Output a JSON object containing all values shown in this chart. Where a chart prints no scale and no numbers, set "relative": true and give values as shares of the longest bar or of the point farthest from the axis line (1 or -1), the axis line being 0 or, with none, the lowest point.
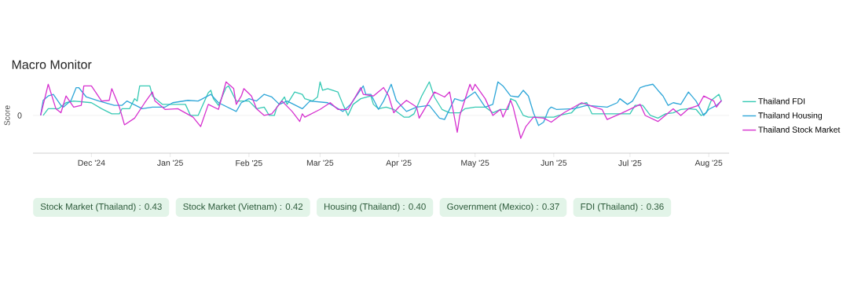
{
  "chart_data": {
    "type": "line",
    "title": "Macro Monitor",
    "ylabel": "Score",
    "relative": true,
    "legend": "right",
    "line_style": "solid",
    "xlim": [
      "2024-11-08",
      "2025-08-09"
    ],
    "xticks": [
      {
        "value": "2024-12-01",
        "label": "Dec '24"
      },
      {
        "value": "2025-01-01",
        "label": "Jan '25"
      },
      {
        "value": "2025-02-01",
        "label": "Feb '25"
      },
      {
        "value": "2025-03-01",
        "label": "Mar '25"
      },
      {
        "value": "2025-04-01",
        "label": "Apr '25"
      },
      {
        "value": "2025-05-01",
        "label": "May '25"
      },
      {
        "value": "2025-06-01",
        "label": "Jun '25"
      },
      {
        "value": "2025-07-01",
        "label": "Jul '25"
      },
      {
        "value": "2025-08-01",
        "label": "Aug '25"
      }
    ],
    "ref_lines": [
      {
        "axis": "y",
        "value": 0,
        "label": "0",
        "color": "#eeeeee"
      }
    ],
    "series": [
      {
        "name": "Thailand FDI",
        "color": "#36c9b4",
        "x": [
          "2024-11-12",
          "2024-11-14",
          "2024-11-18",
          "2024-11-21",
          "2024-11-24",
          "2024-12-01",
          "2024-12-05",
          "2024-12-09",
          "2024-12-12",
          "2024-12-13",
          "2024-12-16",
          "2024-12-18",
          "2024-12-19",
          "2024-12-20",
          "2024-12-24",
          "2024-12-25",
          "2024-12-29",
          "2025-01-04",
          "2025-01-07",
          "2025-01-09",
          "2025-01-12",
          "2025-01-16",
          "2025-01-17",
          "2025-01-18",
          "2025-01-20",
          "2025-01-23",
          "2025-01-24",
          "2025-01-27",
          "2025-02-01",
          "2025-02-04",
          "2025-02-07",
          "2025-02-09",
          "2025-02-11",
          "2025-02-12",
          "2025-02-15",
          "2025-02-16",
          "2025-02-19",
          "2025-02-22",
          "2025-02-23",
          "2025-02-26",
          "2025-02-28",
          "2025-03-01",
          "2025-03-02",
          "2025-03-04",
          "2025-03-08",
          "2025-03-10",
          "2025-03-12",
          "2025-03-14",
          "2025-03-17",
          "2025-03-21",
          "2025-03-22",
          "2025-03-24",
          "2025-03-27",
          "2025-03-30",
          "2025-04-03",
          "2025-04-05",
          "2025-04-07",
          "2025-04-10",
          "2025-04-13",
          "2025-04-15",
          "2025-04-18",
          "2025-04-21",
          "2025-04-25",
          "2025-04-27",
          "2025-05-01",
          "2025-05-05",
          "2025-05-08",
          "2025-05-11",
          "2025-05-14",
          "2025-05-15",
          "2025-05-17",
          "2025-05-20",
          "2025-05-22",
          "2025-06-01",
          "2025-06-03",
          "2025-06-08",
          "2025-06-11",
          "2025-06-14",
          "2025-06-16",
          "2025-06-28",
          "2025-07-01",
          "2025-07-03",
          "2025-07-06",
          "2025-07-09",
          "2025-07-12",
          "2025-07-15",
          "2025-07-18",
          "2025-07-21",
          "2025-07-24",
          "2025-07-27",
          "2025-07-29",
          "2025-07-31",
          "2025-08-02",
          "2025-08-05",
          "2025-08-06"
        ],
        "values": [
          0,
          0.2,
          0.2,
          0.38,
          0.43,
          0.38,
          0.2,
          0.05,
          0.05,
          0.2,
          0.2,
          0.5,
          0.43,
          0.88,
          0.88,
          0.58,
          0.33,
          0.33,
          0.33,
          0,
          0,
          0.68,
          0.75,
          0.5,
          0.3,
          0.83,
          0.88,
          0.43,
          0.43,
          0.2,
          0.25,
          0,
          0,
          0.25,
          0.55,
          0.33,
          0.7,
          0.63,
          0.5,
          0.43,
          0.55,
          1.0,
          0.75,
          0.8,
          0.7,
          0.33,
          0,
          0.33,
          0.5,
          0.58,
          0.33,
          0.2,
          0.25,
          0.18,
          -0.05,
          -0.05,
          0.05,
          0.58,
          1.0,
          0.55,
          0.18,
          0.08,
          0.08,
          0.2,
          0.25,
          0.25,
          0.08,
          0.18,
          0.18,
          0.5,
          0.43,
          0,
          -0.05,
          -0.05,
          0,
          0.08,
          0.33,
          0.38,
          0.05,
          0.05,
          0.05,
          0.3,
          0.3,
          0,
          -0.08,
          0.05,
          0.08,
          0.18,
          0.2,
          0.18,
          0,
          0.08,
          0.45,
          0.63,
          0.43
        ]
      },
      {
        "name": "Thailand Housing",
        "color": "#2ea6d8",
        "x": [
          "2024-11-11",
          "2024-11-12",
          "2024-11-14",
          "2024-11-16",
          "2024-11-19",
          "2024-11-20",
          "2024-11-23",
          "2024-11-25",
          "2024-11-26",
          "2024-11-29",
          "2024-12-04",
          "2024-12-10",
          "2024-12-13",
          "2024-12-15",
          "2024-12-21",
          "2024-12-25",
          "2024-12-30",
          "2025-01-02",
          "2025-01-08",
          "2025-01-12",
          "2025-01-17",
          "2025-01-20",
          "2025-01-27",
          "2025-01-29",
          "2025-02-01",
          "2025-02-04",
          "2025-02-07",
          "2025-02-10",
          "2025-02-13",
          "2025-02-16",
          "2025-02-22",
          "2025-02-25",
          "2025-03-04",
          "2025-03-10",
          "2025-03-13",
          "2025-03-18",
          "2025-03-19",
          "2025-03-21",
          "2025-03-24",
          "2025-03-26",
          "2025-03-29",
          "2025-03-31",
          "2025-04-04",
          "2025-04-08",
          "2025-04-13",
          "2025-04-17",
          "2025-04-19",
          "2025-04-23",
          "2025-04-26",
          "2025-05-01",
          "2025-05-05",
          "2025-05-08",
          "2025-05-10",
          "2025-05-12",
          "2025-05-15",
          "2025-05-18",
          "2025-05-20",
          "2025-05-22",
          "2025-05-24",
          "2025-05-26",
          "2025-05-28",
          "2025-05-30",
          "2025-05-31",
          "2025-06-02",
          "2025-06-09",
          "2025-06-14",
          "2025-06-22",
          "2025-06-26",
          "2025-06-27",
          "2025-06-30",
          "2025-07-02",
          "2025-07-05",
          "2025-07-07",
          "2025-07-10",
          "2025-07-12",
          "2025-07-14",
          "2025-07-16",
          "2025-07-18",
          "2025-07-21",
          "2025-07-24",
          "2025-07-27",
          "2025-07-30",
          "2025-08-01",
          "2025-08-04",
          "2025-08-06"
        ],
        "values": [
          0,
          0.45,
          0.58,
          0.63,
          0.3,
          0.25,
          0.45,
          0.83,
          0.83,
          0.55,
          0.43,
          0.3,
          0.3,
          0.43,
          0.2,
          0.25,
          0.25,
          0.38,
          0.45,
          0.43,
          0.63,
          0.38,
          0.12,
          0.38,
          0.5,
          0.43,
          0.63,
          0.55,
          0.33,
          0.43,
          0.2,
          0.43,
          0.38,
          0.12,
          0.33,
          0.88,
          0.63,
          0.63,
          0.18,
          0.43,
          0.93,
          0.45,
          0.12,
          0.25,
          0.3,
          -0.08,
          -0.12,
          0.5,
          0.43,
          0.7,
          0.25,
          0.33,
          1.0,
          0.88,
          0.58,
          0.55,
          0.75,
          0.58,
          0.08,
          -0.3,
          -0.2,
          0.18,
          0.25,
          0.18,
          0.2,
          0.3,
          0.25,
          0.38,
          0.5,
          0.33,
          0.43,
          0.83,
          0.88,
          0.93,
          0.75,
          0.58,
          0.3,
          0.38,
          0.33,
          0.7,
          0.43,
          0,
          0.18,
          0.3,
          0.43
        ]
      },
      {
        "name": "Thailand Stock Market",
        "color": "#d631cf",
        "x": [
          "2024-11-11",
          "2024-11-14",
          "2024-11-17",
          "2024-11-19",
          "2024-11-21",
          "2024-11-24",
          "2024-11-27",
          "2024-11-28",
          "2024-12-01",
          "2024-12-05",
          "2024-12-08",
          "2024-12-09",
          "2024-12-12",
          "2024-12-14",
          "2024-12-18",
          "2024-12-22",
          "2024-12-25",
          "2024-12-26",
          "2024-12-30",
          "2025-01-04",
          "2025-01-10",
          "2025-01-13",
          "2025-01-16",
          "2025-01-20",
          "2025-01-23",
          "2025-01-26",
          "2025-01-27",
          "2025-01-29",
          "2025-01-30",
          "2025-02-02",
          "2025-02-04",
          "2025-02-07",
          "2025-02-10",
          "2025-02-14",
          "2025-02-18",
          "2025-02-21",
          "2025-02-22",
          "2025-02-23",
          "2025-03-01",
          "2025-03-05",
          "2025-03-08",
          "2025-03-12",
          "2025-03-17",
          "2025-03-18",
          "2025-03-22",
          "2025-03-26",
          "2025-03-28",
          "2025-03-30",
          "2025-04-01",
          "2025-04-04",
          "2025-04-08",
          "2025-04-09",
          "2025-04-13",
          "2025-04-15",
          "2025-04-19",
          "2025-04-21",
          "2025-04-24",
          "2025-04-25",
          "2025-04-29",
          "2025-04-30",
          "2025-05-01",
          "2025-05-05",
          "2025-05-08",
          "2025-05-11",
          "2025-05-12",
          "2025-05-15",
          "2025-05-16",
          "2025-05-19",
          "2025-05-21",
          "2025-05-24",
          "2025-05-28",
          "2025-05-31",
          "2025-06-05",
          "2025-06-12",
          "2025-06-17",
          "2025-06-20",
          "2025-06-22",
          "2025-06-28",
          "2025-07-05",
          "2025-07-07",
          "2025-07-12",
          "2025-07-18",
          "2025-07-21",
          "2025-07-24",
          "2025-07-28",
          "2025-07-30",
          "2025-08-03",
          "2025-08-04",
          "2025-08-06"
        ],
        "values": [
          0,
          0.93,
          0.2,
          0.08,
          0.58,
          0.25,
          0.3,
          0.88,
          0.88,
          0.43,
          0.45,
          0.8,
          0.25,
          -0.28,
          -0.08,
          0.38,
          0.7,
          0.43,
          0.18,
          0.2,
          -0.05,
          -0.33,
          0.33,
          0.18,
          1.0,
          0.8,
          0.33,
          0.58,
          0.8,
          0.58,
          0.2,
          0,
          0.05,
          0.43,
          0.12,
          -0.18,
          0.05,
          -0.05,
          0.18,
          0.38,
          0.18,
          0.18,
          0.83,
          0.63,
          0.58,
          0.83,
          0.58,
          0.08,
          0.25,
          0.45,
          0.25,
          -0.08,
          0.43,
          0.7,
          0.55,
          0.7,
          -0.5,
          0,
          0.93,
          0.75,
          0.93,
          0.5,
          0,
          0.18,
          -0.05,
          0.45,
          0.25,
          -0.68,
          -0.33,
          -0.05,
          -0.08,
          -0.2,
          0.08,
          0.38,
          0.25,
          0.18,
          -0.12,
          0.08,
          0.33,
          0,
          -0.18,
          0.2,
          0,
          0.2,
          0.3,
          0.58,
          0.43,
          0.25,
          0.45
        ]
      }
    ],
    "annotations": [
      "Stock Market (Thailand) : 0.43",
      "Stock Market (Vietnam) : 0.42",
      "Housing (Thailand) : 0.40",
      "Government (Mexico) : 0.37",
      "FDI (Thailand) : 0.36"
    ]
  }
}
